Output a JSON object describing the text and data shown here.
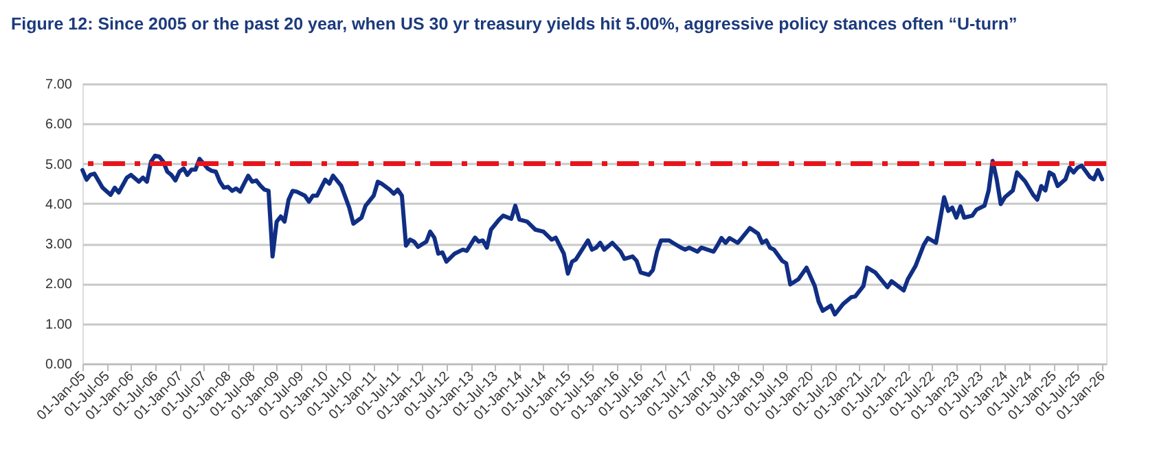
{
  "chart_data": {
    "type": "line",
    "title": "Figure 12: Since 2005 or the past 20 year, when US 30 yr treasury yields hit 5.00%, aggressive policy stances often “U-turn”",
    "x": [
      "2005-01",
      "2005-02",
      "2005-03",
      "2005-04",
      "2005-06",
      "2005-08",
      "2005-09",
      "2005-10",
      "2005-12",
      "2006-01",
      "2006-03",
      "2006-04",
      "2006-05",
      "2006-06",
      "2006-07",
      "2006-08",
      "2006-09",
      "2006-10",
      "2006-11",
      "2006-12",
      "2007-01",
      "2007-02",
      "2007-03",
      "2007-04",
      "2007-05",
      "2007-06",
      "2007-08",
      "2007-09",
      "2007-10",
      "2007-11",
      "2007-12",
      "2008-01",
      "2008-02",
      "2008-03",
      "2008-04",
      "2008-05",
      "2008-06",
      "2008-07",
      "2008-08",
      "2008-09",
      "2008-10",
      "2008-11",
      "2008-12",
      "2009-01",
      "2009-02",
      "2009-03",
      "2009-04",
      "2009-05",
      "2009-06",
      "2009-08",
      "2009-09",
      "2009-10",
      "2009-11",
      "2010-01",
      "2010-02",
      "2010-03",
      "2010-05",
      "2010-07",
      "2010-08",
      "2010-10",
      "2010-11",
      "2011-01",
      "2011-02",
      "2011-03",
      "2011-05",
      "2011-06",
      "2011-07",
      "2011-08",
      "2011-09",
      "2011-10",
      "2011-11",
      "2011-12",
      "2012-02",
      "2012-03",
      "2012-04",
      "2012-05",
      "2012-06",
      "2012-07",
      "2012-09",
      "2012-11",
      "2012-12",
      "2013-02",
      "2013-03",
      "2013-04",
      "2013-05",
      "2013-06",
      "2013-08",
      "2013-09",
      "2013-11",
      "2013-12",
      "2014-01",
      "2014-03",
      "2014-05",
      "2014-07",
      "2014-09",
      "2014-10",
      "2014-12",
      "2015-01",
      "2015-02",
      "2015-03",
      "2015-06",
      "2015-07",
      "2015-08",
      "2015-09",
      "2015-10",
      "2015-12",
      "2016-02",
      "2016-03",
      "2016-05",
      "2016-06",
      "2016-07",
      "2016-09",
      "2016-10",
      "2016-11",
      "2016-12",
      "2017-02",
      "2017-03",
      "2017-05",
      "2017-06",
      "2017-07",
      "2017-09",
      "2017-10",
      "2018-01",
      "2018-02",
      "2018-03",
      "2018-04",
      "2018-05",
      "2018-07",
      "2018-08",
      "2018-10",
      "2018-12",
      "2019-01",
      "2019-02",
      "2019-03",
      "2019-04",
      "2019-06",
      "2019-07",
      "2019-08",
      "2019-10",
      "2019-12",
      "2020-02",
      "2020-03",
      "2020-04",
      "2020-06",
      "2020-07",
      "2020-09",
      "2020-11",
      "2020-12",
      "2021-02",
      "2021-03",
      "2021-05",
      "2021-08",
      "2021-09",
      "2021-12",
      "2022-01",
      "2022-03",
      "2022-05",
      "2022-06",
      "2022-08",
      "2022-09",
      "2022-10",
      "2022-11",
      "2022-12",
      "2023-01",
      "2023-02",
      "2023-03",
      "2023-05",
      "2023-06",
      "2023-08",
      "2023-09",
      "2023-10",
      "2023-11",
      "2023-12",
      "2024-01",
      "2024-03",
      "2024-04",
      "2024-06",
      "2024-08",
      "2024-09",
      "2024-10",
      "2024-11",
      "2024-12",
      "2025-01",
      "2025-02",
      "2025-04",
      "2025-05",
      "2025-06",
      "2025-07",
      "2025-08",
      "2025-10",
      "2025-11",
      "2025-12",
      "2026-01"
    ],
    "series": [
      {
        "color": "#102e84",
        "values": [
          4.84,
          4.6,
          4.72,
          4.75,
          4.4,
          4.22,
          4.4,
          4.28,
          4.65,
          4.72,
          4.55,
          4.65,
          4.55,
          5.05,
          5.2,
          5.18,
          5.05,
          4.8,
          4.72,
          4.58,
          4.8,
          4.88,
          4.72,
          4.85,
          4.85,
          5.12,
          4.88,
          4.82,
          4.8,
          4.55,
          4.4,
          4.42,
          4.32,
          4.38,
          4.3,
          4.5,
          4.7,
          4.55,
          4.58,
          4.45,
          4.35,
          4.32,
          2.68,
          3.55,
          3.68,
          3.55,
          4.1,
          4.32,
          4.3,
          4.2,
          4.05,
          4.2,
          4.2,
          4.6,
          4.5,
          4.7,
          4.45,
          3.9,
          3.5,
          3.65,
          3.95,
          4.2,
          4.55,
          4.5,
          4.35,
          4.25,
          4.35,
          4.2,
          2.95,
          3.1,
          3.05,
          2.92,
          3.05,
          3.3,
          3.15,
          2.75,
          2.78,
          2.55,
          2.75,
          2.85,
          2.82,
          3.15,
          3.05,
          3.08,
          2.9,
          3.35,
          3.6,
          3.7,
          3.62,
          3.95,
          3.6,
          3.55,
          3.35,
          3.3,
          3.1,
          3.15,
          2.75,
          2.25,
          2.55,
          2.6,
          3.08,
          2.85,
          2.9,
          3.02,
          2.85,
          3.02,
          2.8,
          2.62,
          2.68,
          2.57,
          2.28,
          2.22,
          2.34,
          2.8,
          3.08,
          3.08,
          3.02,
          2.9,
          2.85,
          2.9,
          2.8,
          2.9,
          2.8,
          2.97,
          3.14,
          3.02,
          3.14,
          3.02,
          3.14,
          3.39,
          3.25,
          3.02,
          3.08,
          2.9,
          2.85,
          2.57,
          2.51,
          1.98,
          2.11,
          2.4,
          1.94,
          1.55,
          1.32,
          1.45,
          1.23,
          1.49,
          1.66,
          1.68,
          1.94,
          2.4,
          2.28,
          1.91,
          2.06,
          1.83,
          2.11,
          2.45,
          2.97,
          3.14,
          3.02,
          3.6,
          4.16,
          3.82,
          3.9,
          3.65,
          3.93,
          3.65,
          3.7,
          3.85,
          3.95,
          4.33,
          5.07,
          4.6,
          3.99,
          4.16,
          4.33,
          4.78,
          4.56,
          4.22,
          4.1,
          4.44,
          4.33,
          4.78,
          4.72,
          4.44,
          4.61,
          4.9,
          4.78,
          4.9,
          4.95,
          4.67,
          4.61,
          4.84,
          4.61
        ]
      }
    ],
    "xlim": [
      "2005-01-01",
      "2026-02-01"
    ],
    "xticks": [
      {
        "value": "2005-01-01",
        "label": "01-Jan-05"
      },
      {
        "value": "2005-07-01",
        "label": "01-Jul-05"
      },
      {
        "value": "2006-01-01",
        "label": "01-Jan-06"
      },
      {
        "value": "2006-07-01",
        "label": "01-Jul-06"
      },
      {
        "value": "2007-01-01",
        "label": "01-Jan-07"
      },
      {
        "value": "2007-07-01",
        "label": "01-Jul-07"
      },
      {
        "value": "2008-01-01",
        "label": "01-Jan-08"
      },
      {
        "value": "2008-07-01",
        "label": "01-Jul-08"
      },
      {
        "value": "2009-01-01",
        "label": "01-Jan-09"
      },
      {
        "value": "2009-07-01",
        "label": "01-Jul-09"
      },
      {
        "value": "2010-01-01",
        "label": "01-Jan-10"
      },
      {
        "value": "2010-07-01",
        "label": "01-Jul-10"
      },
      {
        "value": "2011-01-01",
        "label": "01-Jan-11"
      },
      {
        "value": "2011-07-01",
        "label": "01-Jul-11"
      },
      {
        "value": "2012-01-01",
        "label": "01-Jan-12"
      },
      {
        "value": "2012-07-01",
        "label": "01-Jul-12"
      },
      {
        "value": "2013-01-01",
        "label": "01-Jan-13"
      },
      {
        "value": "2013-07-01",
        "label": "01-Jul-13"
      },
      {
        "value": "2014-01-01",
        "label": "01-Jan-14"
      },
      {
        "value": "2014-07-01",
        "label": "01-Jul-14"
      },
      {
        "value": "2015-01-01",
        "label": "01-Jan-15"
      },
      {
        "value": "2015-07-01",
        "label": "01-Jul-15"
      },
      {
        "value": "2016-01-01",
        "label": "01-Jan-16"
      },
      {
        "value": "2016-07-01",
        "label": "01-Jul-16"
      },
      {
        "value": "2017-01-01",
        "label": "01-Jan-17"
      },
      {
        "value": "2017-07-01",
        "label": "01-Jul-17"
      },
      {
        "value": "2018-01-01",
        "label": "01-Jan-18"
      },
      {
        "value": "2018-07-01",
        "label": "01-Jul-18"
      },
      {
        "value": "2019-01-01",
        "label": "01-Jan-19"
      },
      {
        "value": "2019-07-01",
        "label": "01-Jul-19"
      },
      {
        "value": "2020-01-01",
        "label": "01-Jan-20"
      },
      {
        "value": "2020-07-01",
        "label": "01-Jul-20"
      },
      {
        "value": "2021-01-01",
        "label": "01-Jan-21"
      },
      {
        "value": "2021-07-01",
        "label": "01-Jul-21"
      },
      {
        "value": "2022-01-01",
        "label": "01-Jan-22"
      },
      {
        "value": "2022-07-01",
        "label": "01-Jul-22"
      },
      {
        "value": "2023-01-01",
        "label": "01-Jan-23"
      },
      {
        "value": "2023-07-01",
        "label": "01-Jul-23"
      },
      {
        "value": "2024-01-01",
        "label": "01-Jan-24"
      },
      {
        "value": "2024-07-01",
        "label": "01-Jul-24"
      },
      {
        "value": "2025-01-01",
        "label": "01-Jan-25"
      },
      {
        "value": "2025-07-01",
        "label": "01-Jul-25"
      },
      {
        "value": "2026-01-01",
        "label": "01-Jan-26"
      }
    ],
    "ylim": [
      0,
      7
    ],
    "yticks": [
      {
        "value": 0,
        "label": "0.00"
      },
      {
        "value": 1,
        "label": "1.00"
      },
      {
        "value": 2,
        "label": "2.00"
      },
      {
        "value": 3,
        "label": "3.00"
      },
      {
        "value": 4,
        "label": "4.00"
      },
      {
        "value": 5,
        "label": "5.00"
      },
      {
        "value": 6,
        "label": "6.00"
      },
      {
        "value": 7,
        "label": "7.00"
      }
    ],
    "ref_lines": [
      {
        "axis": "y",
        "value": 5,
        "color": "#e8141b",
        "line_style": "dashdot"
      }
    ],
    "grid": "y",
    "legend": false,
    "marker": "none",
    "line_style": "solid"
  }
}
